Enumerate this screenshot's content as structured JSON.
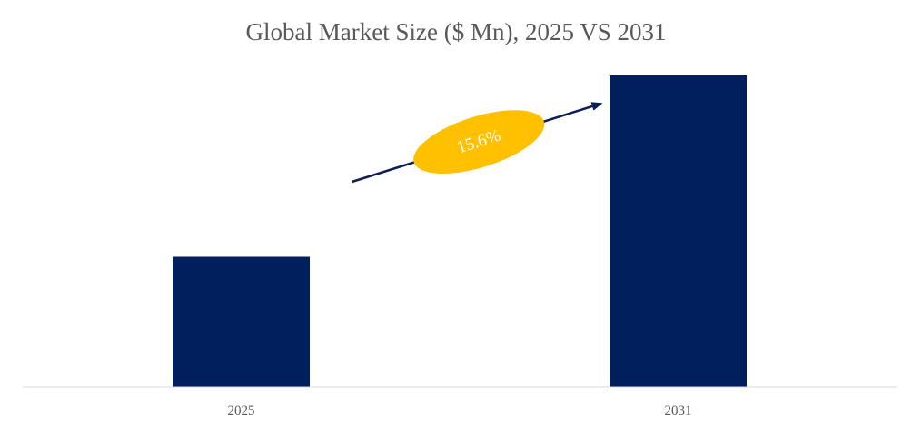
{
  "chart_data": {
    "type": "bar",
    "title": "Global Market Size ($ Mn), 2025 VS 2031",
    "categories": [
      "2025",
      "2031"
    ],
    "values": [
      100,
      239
    ],
    "xlabel": "",
    "ylabel": "",
    "ylim": [
      0,
      255
    ],
    "grid": false,
    "legend": "none",
    "annotations": [
      {
        "type": "growth-arrow",
        "label": "15.6%",
        "from": "2025",
        "to": "2031"
      }
    ]
  },
  "colors": {
    "bar": "#001f5c",
    "arrow": "#0d1f55",
    "badge": "#ffc000",
    "axis": "#d9d9d9",
    "text": "#595959"
  }
}
